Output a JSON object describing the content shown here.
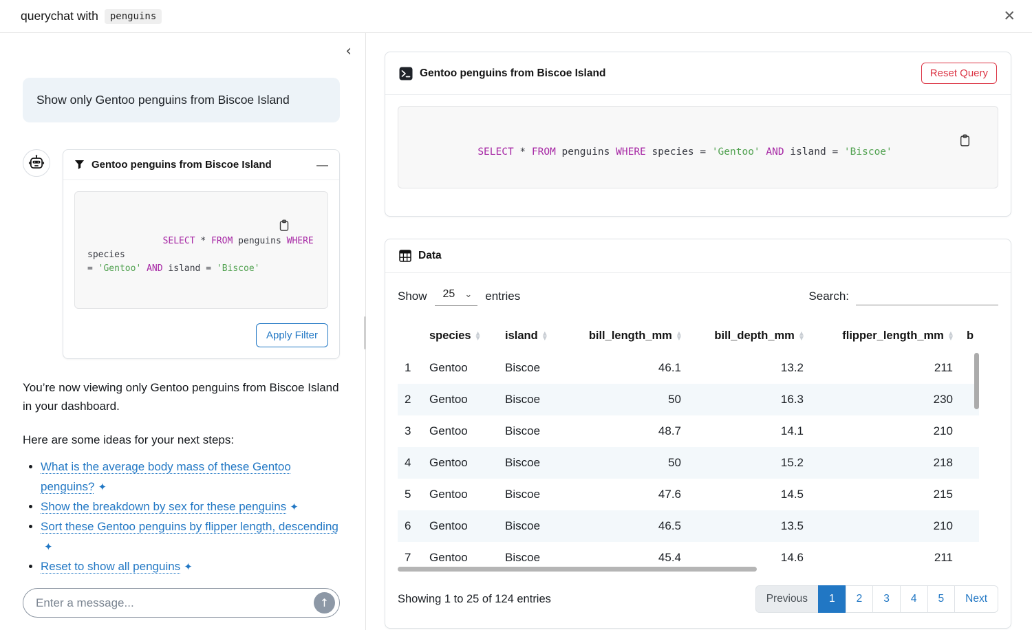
{
  "colors": {
    "accent": "#2177c4",
    "danger": "#dc3545",
    "sql_keyword": "#a626a4",
    "sql_string": "#50a14f",
    "row_stripe": "#f3f8fb",
    "user_bubble_bg": "#edf3f8",
    "code_bg": "#f8f8f8"
  },
  "icons": {
    "close": "✕",
    "collapse_left": "‹",
    "minimize": "—",
    "send_up_arrow": "↑",
    "select_chevron": "⌄",
    "sort_asc": "▲",
    "sort_desc": "▼",
    "suggestion_star": "✦"
  },
  "topbar": {
    "title_prefix": "querychat with",
    "dataset": "penguins"
  },
  "sidebar": {
    "user_message": "Show only Gentoo penguins from Biscoe Island",
    "filter_card": {
      "title": "Gentoo penguins from Biscoe Island",
      "sql_tokens": [
        {
          "text": "SELECT",
          "type": "keyword"
        },
        {
          "text": " * ",
          "type": "plain"
        },
        {
          "text": "FROM",
          "type": "keyword"
        },
        {
          "text": " penguins ",
          "type": "plain"
        },
        {
          "text": "WHERE",
          "type": "keyword"
        },
        {
          "text": " species\n= ",
          "type": "plain"
        },
        {
          "text": "'Gentoo'",
          "type": "string"
        },
        {
          "text": " ",
          "type": "plain"
        },
        {
          "text": "AND",
          "type": "keyword"
        },
        {
          "text": " island = ",
          "type": "plain"
        },
        {
          "text": "'Biscoe'",
          "type": "string"
        }
      ],
      "apply_button": "Apply Filter"
    },
    "assistant_paragraph_1": "You’re now viewing only Gentoo penguins from Biscoe Island in your dashboard.",
    "assistant_paragraph_2": "Here are some ideas for your next steps:",
    "suggestions": [
      "What is the average body mass of these Gentoo penguins?",
      "Show the breakdown by sex for these penguins",
      "Sort these Gentoo penguins by flipper length, descending",
      "Reset to show all penguins"
    ],
    "input_placeholder": "Enter a message..."
  },
  "main": {
    "query_card": {
      "title": "Gentoo penguins from Biscoe Island",
      "reset_button": "Reset Query",
      "sql_tokens": [
        {
          "text": "SELECT",
          "type": "keyword"
        },
        {
          "text": " * ",
          "type": "plain"
        },
        {
          "text": "FROM",
          "type": "keyword"
        },
        {
          "text": " penguins ",
          "type": "plain"
        },
        {
          "text": "WHERE",
          "type": "keyword"
        },
        {
          "text": " species = ",
          "type": "plain"
        },
        {
          "text": "'Gentoo'",
          "type": "string"
        },
        {
          "text": " ",
          "type": "plain"
        },
        {
          "text": "AND",
          "type": "keyword"
        },
        {
          "text": " island = ",
          "type": "plain"
        },
        {
          "text": "'Biscoe'",
          "type": "string"
        }
      ]
    },
    "data_card": {
      "title": "Data",
      "show_label": "Show",
      "page_size": "25",
      "entries_label": "entries",
      "search_label": "Search:",
      "table": {
        "columns": [
          {
            "label": "species",
            "align": "left",
            "sortable": true
          },
          {
            "label": "island",
            "align": "left",
            "sortable": true
          },
          {
            "label": "bill_length_mm",
            "align": "right",
            "sortable": true
          },
          {
            "label": "bill_depth_mm",
            "align": "right",
            "sortable": true
          },
          {
            "label": "flipper_length_mm",
            "align": "right",
            "sortable": true
          },
          {
            "label": "b",
            "align": "left",
            "sortable": false
          }
        ],
        "rows": [
          [
            "1",
            "Gentoo",
            "Biscoe",
            "46.1",
            "13.2",
            "211",
            ""
          ],
          [
            "2",
            "Gentoo",
            "Biscoe",
            "50",
            "16.3",
            "230",
            ""
          ],
          [
            "3",
            "Gentoo",
            "Biscoe",
            "48.7",
            "14.1",
            "210",
            ""
          ],
          [
            "4",
            "Gentoo",
            "Biscoe",
            "50",
            "15.2",
            "218",
            ""
          ],
          [
            "5",
            "Gentoo",
            "Biscoe",
            "47.6",
            "14.5",
            "215",
            ""
          ],
          [
            "6",
            "Gentoo",
            "Biscoe",
            "46.5",
            "13.5",
            "210",
            ""
          ],
          [
            "7",
            "Gentoo",
            "Biscoe",
            "45.4",
            "14.6",
            "211",
            ""
          ]
        ]
      },
      "footer": {
        "info": "Showing 1 to 25 of 124 entries",
        "pages": [
          {
            "label": "Previous",
            "state": "disabled"
          },
          {
            "label": "1",
            "state": "active"
          },
          {
            "label": "2",
            "state": "link"
          },
          {
            "label": "3",
            "state": "link"
          },
          {
            "label": "4",
            "state": "link"
          },
          {
            "label": "5",
            "state": "link"
          },
          {
            "label": "Next",
            "state": "link"
          }
        ]
      }
    }
  }
}
